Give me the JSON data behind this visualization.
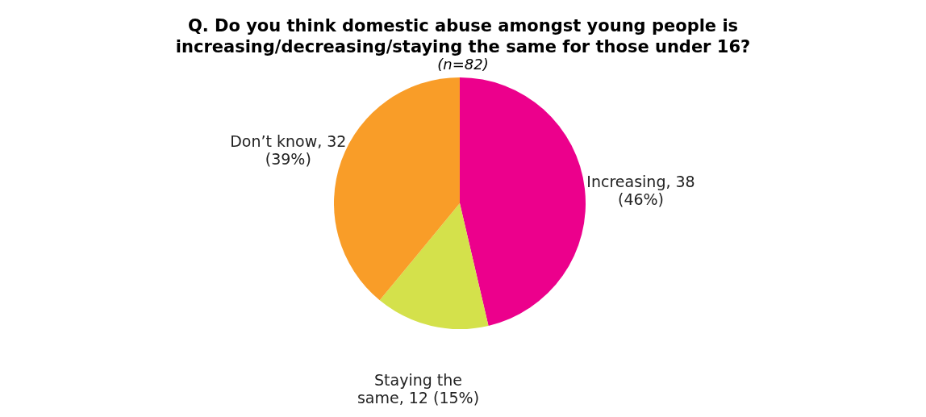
{
  "chart_data": {
    "type": "pie",
    "title": "Q. Do you think domestic abuse amongst young people is increasing/decreasing/staying the same for those under 16?",
    "subtitle": "(n=82)",
    "categories": [
      "Increasing",
      "Staying the same",
      "Don’t know"
    ],
    "values": [
      38,
      12,
      32
    ],
    "colors": [
      "#ec008c",
      "#d4e14b",
      "#f99d28"
    ],
    "value_labels": [
      "38 (46%)",
      "12 (15%)",
      "32 (39%)"
    ]
  }
}
